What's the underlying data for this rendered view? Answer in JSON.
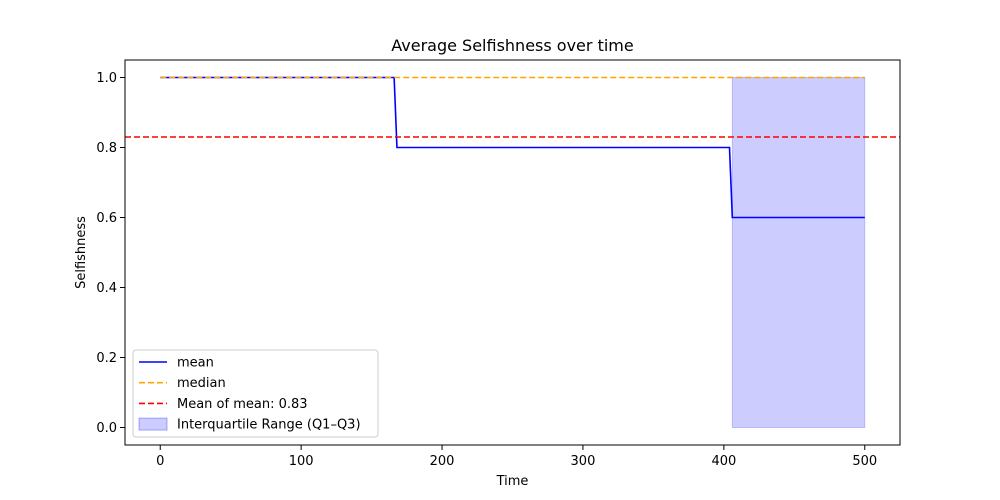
{
  "chart_data": {
    "type": "line",
    "title": "Average Selfishness over time",
    "xlabel": "Time",
    "ylabel": "Selfishness",
    "xlim": [
      -25,
      525
    ],
    "ylim": [
      -0.05,
      1.05
    ],
    "xticks": [
      0,
      100,
      200,
      300,
      400,
      500
    ],
    "xtick_labels": [
      "0",
      "100",
      "200",
      "300",
      "400",
      "500"
    ],
    "yticks": [
      0.0,
      0.2,
      0.4,
      0.6,
      0.8,
      1.0
    ],
    "ytick_labels": [
      "0.0",
      "0.2",
      "0.4",
      "0.6",
      "0.8",
      "1.0"
    ],
    "grid": false,
    "legend_position": "lower-left",
    "series": [
      {
        "name": "mean",
        "style": "solid",
        "color": "#0000ff",
        "x": [
          0,
          166,
          168,
          404,
          406,
          500
        ],
        "y": [
          1.0,
          1.0,
          0.8,
          0.8,
          0.6,
          0.6
        ]
      },
      {
        "name": "median",
        "style": "dashed",
        "color": "#ffa500",
        "x": [
          0,
          500
        ],
        "y": [
          1.0,
          1.0
        ]
      }
    ],
    "reference_lines": [
      {
        "name": "Mean of mean: 0.83",
        "orientation": "horizontal",
        "value": 0.83,
        "style": "dashed",
        "color": "#ff0000"
      }
    ],
    "bands": [
      {
        "name": "Interquartile Range (Q1–Q3)",
        "color": "#0000ff",
        "x": [
          406,
          500
        ],
        "lower": [
          0.0,
          0.0
        ],
        "upper": [
          1.0,
          1.0
        ]
      }
    ]
  }
}
